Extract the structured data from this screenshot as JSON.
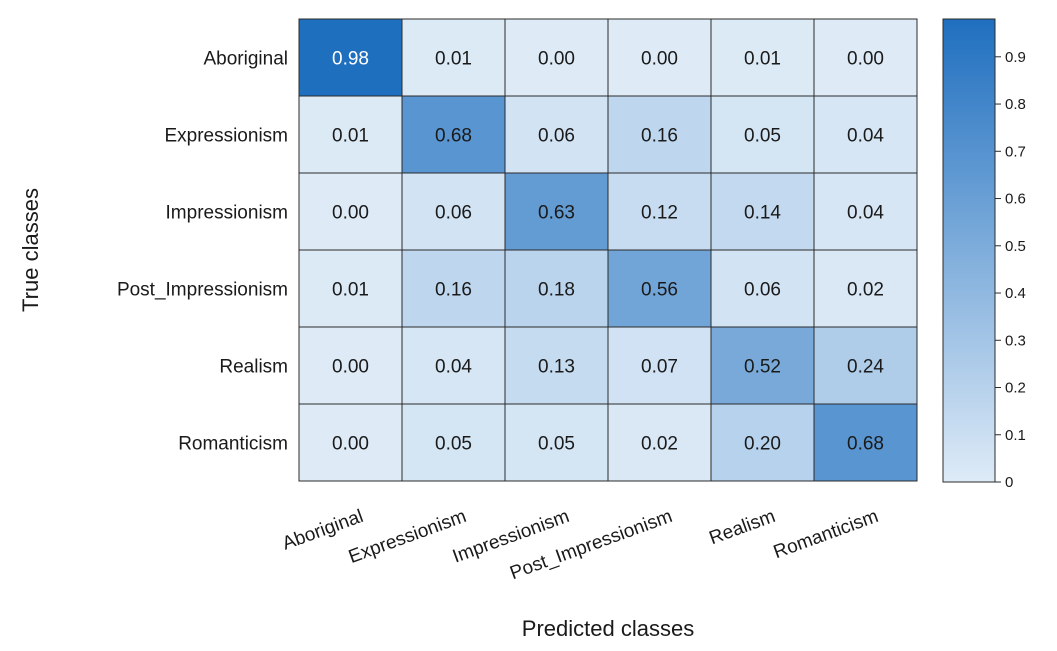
{
  "chart_data": {
    "type": "heatmap",
    "title": "",
    "xlabel": "Predicted classes",
    "ylabel": "True classes",
    "rows": [
      "Aboriginal",
      "Expressionism",
      "Impressionism",
      "Post_Impressionism",
      "Realism",
      "Romanticism"
    ],
    "columns": [
      "Aboriginal",
      "Expressionism",
      "Impressionism",
      "Post_Impressionism",
      "Realism",
      "Romanticism"
    ],
    "values": [
      [
        "0.98",
        "0.01",
        "0.00",
        "0.00",
        "0.01",
        "0.00"
      ],
      [
        "0.01",
        "0.68",
        "0.06",
        "0.16",
        "0.05",
        "0.04"
      ],
      [
        "0.00",
        "0.06",
        "0.63",
        "0.12",
        "0.14",
        "0.04"
      ],
      [
        "0.01",
        "0.16",
        "0.18",
        "0.56",
        "0.06",
        "0.02"
      ],
      [
        "0.00",
        "0.04",
        "0.13",
        "0.07",
        "0.52",
        "0.24"
      ],
      [
        "0.00",
        "0.05",
        "0.05",
        "0.02",
        "0.20",
        "0.68"
      ]
    ],
    "colorbar": {
      "range": [
        0,
        0.98
      ],
      "ticks": [
        "0",
        "0.1",
        "0.2",
        "0.3",
        "0.4",
        "0.5",
        "0.6",
        "0.7",
        "0.8",
        "0.9"
      ],
      "color_low": "#deebf7",
      "color_high": "#1f6fbf"
    },
    "grid": true,
    "legend": "colorbar-right"
  }
}
